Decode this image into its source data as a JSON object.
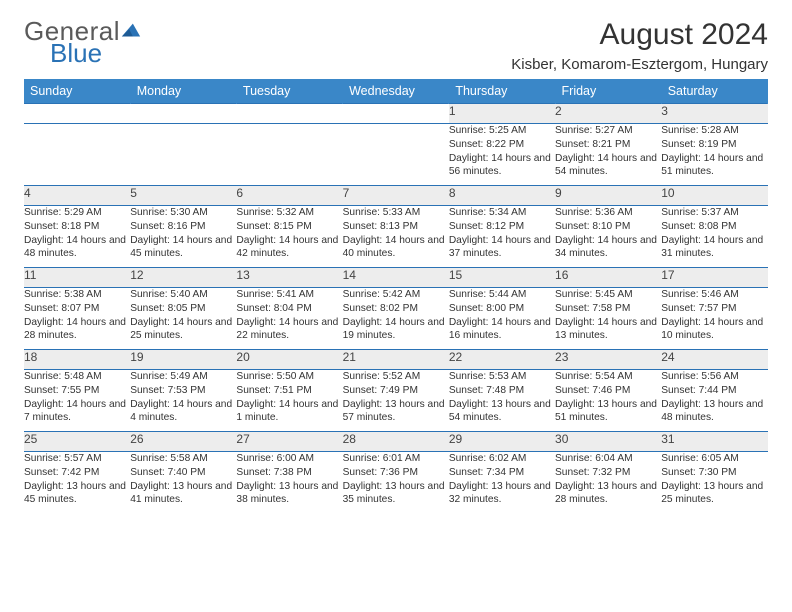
{
  "brand": {
    "line1": "General",
    "line2": "Blue",
    "accent": "#2a72b5",
    "text_color": "#5a5a5a"
  },
  "title": "August 2024",
  "location": "Kisber, Komarom-Esztergom, Hungary",
  "colors": {
    "header_bg": "#3a87c8",
    "header_text": "#ffffff",
    "daynum_bg": "#ededed",
    "cell_border": "#2a72b5",
    "page_bg": "#ffffff",
    "body_text": "#333333"
  },
  "fonts": {
    "title_size": 30,
    "location_size": 15,
    "weekday_size": 12.5,
    "daynum_size": 12,
    "cell_size": 10.2
  },
  "weekdays": [
    "Sunday",
    "Monday",
    "Tuesday",
    "Wednesday",
    "Thursday",
    "Friday",
    "Saturday"
  ],
  "weeks": [
    [
      {
        "n": "",
        "sr": "",
        "ss": "",
        "dl": ""
      },
      {
        "n": "",
        "sr": "",
        "ss": "",
        "dl": ""
      },
      {
        "n": "",
        "sr": "",
        "ss": "",
        "dl": ""
      },
      {
        "n": "",
        "sr": "",
        "ss": "",
        "dl": ""
      },
      {
        "n": "1",
        "sr": "Sunrise: 5:25 AM",
        "ss": "Sunset: 8:22 PM",
        "dl": "Daylight: 14 hours and 56 minutes."
      },
      {
        "n": "2",
        "sr": "Sunrise: 5:27 AM",
        "ss": "Sunset: 8:21 PM",
        "dl": "Daylight: 14 hours and 54 minutes."
      },
      {
        "n": "3",
        "sr": "Sunrise: 5:28 AM",
        "ss": "Sunset: 8:19 PM",
        "dl": "Daylight: 14 hours and 51 minutes."
      }
    ],
    [
      {
        "n": "4",
        "sr": "Sunrise: 5:29 AM",
        "ss": "Sunset: 8:18 PM",
        "dl": "Daylight: 14 hours and 48 minutes."
      },
      {
        "n": "5",
        "sr": "Sunrise: 5:30 AM",
        "ss": "Sunset: 8:16 PM",
        "dl": "Daylight: 14 hours and 45 minutes."
      },
      {
        "n": "6",
        "sr": "Sunrise: 5:32 AM",
        "ss": "Sunset: 8:15 PM",
        "dl": "Daylight: 14 hours and 42 minutes."
      },
      {
        "n": "7",
        "sr": "Sunrise: 5:33 AM",
        "ss": "Sunset: 8:13 PM",
        "dl": "Daylight: 14 hours and 40 minutes."
      },
      {
        "n": "8",
        "sr": "Sunrise: 5:34 AM",
        "ss": "Sunset: 8:12 PM",
        "dl": "Daylight: 14 hours and 37 minutes."
      },
      {
        "n": "9",
        "sr": "Sunrise: 5:36 AM",
        "ss": "Sunset: 8:10 PM",
        "dl": "Daylight: 14 hours and 34 minutes."
      },
      {
        "n": "10",
        "sr": "Sunrise: 5:37 AM",
        "ss": "Sunset: 8:08 PM",
        "dl": "Daylight: 14 hours and 31 minutes."
      }
    ],
    [
      {
        "n": "11",
        "sr": "Sunrise: 5:38 AM",
        "ss": "Sunset: 8:07 PM",
        "dl": "Daylight: 14 hours and 28 minutes."
      },
      {
        "n": "12",
        "sr": "Sunrise: 5:40 AM",
        "ss": "Sunset: 8:05 PM",
        "dl": "Daylight: 14 hours and 25 minutes."
      },
      {
        "n": "13",
        "sr": "Sunrise: 5:41 AM",
        "ss": "Sunset: 8:04 PM",
        "dl": "Daylight: 14 hours and 22 minutes."
      },
      {
        "n": "14",
        "sr": "Sunrise: 5:42 AM",
        "ss": "Sunset: 8:02 PM",
        "dl": "Daylight: 14 hours and 19 minutes."
      },
      {
        "n": "15",
        "sr": "Sunrise: 5:44 AM",
        "ss": "Sunset: 8:00 PM",
        "dl": "Daylight: 14 hours and 16 minutes."
      },
      {
        "n": "16",
        "sr": "Sunrise: 5:45 AM",
        "ss": "Sunset: 7:58 PM",
        "dl": "Daylight: 14 hours and 13 minutes."
      },
      {
        "n": "17",
        "sr": "Sunrise: 5:46 AM",
        "ss": "Sunset: 7:57 PM",
        "dl": "Daylight: 14 hours and 10 minutes."
      }
    ],
    [
      {
        "n": "18",
        "sr": "Sunrise: 5:48 AM",
        "ss": "Sunset: 7:55 PM",
        "dl": "Daylight: 14 hours and 7 minutes."
      },
      {
        "n": "19",
        "sr": "Sunrise: 5:49 AM",
        "ss": "Sunset: 7:53 PM",
        "dl": "Daylight: 14 hours and 4 minutes."
      },
      {
        "n": "20",
        "sr": "Sunrise: 5:50 AM",
        "ss": "Sunset: 7:51 PM",
        "dl": "Daylight: 14 hours and 1 minute."
      },
      {
        "n": "21",
        "sr": "Sunrise: 5:52 AM",
        "ss": "Sunset: 7:49 PM",
        "dl": "Daylight: 13 hours and 57 minutes."
      },
      {
        "n": "22",
        "sr": "Sunrise: 5:53 AM",
        "ss": "Sunset: 7:48 PM",
        "dl": "Daylight: 13 hours and 54 minutes."
      },
      {
        "n": "23",
        "sr": "Sunrise: 5:54 AM",
        "ss": "Sunset: 7:46 PM",
        "dl": "Daylight: 13 hours and 51 minutes."
      },
      {
        "n": "24",
        "sr": "Sunrise: 5:56 AM",
        "ss": "Sunset: 7:44 PM",
        "dl": "Daylight: 13 hours and 48 minutes."
      }
    ],
    [
      {
        "n": "25",
        "sr": "Sunrise: 5:57 AM",
        "ss": "Sunset: 7:42 PM",
        "dl": "Daylight: 13 hours and 45 minutes."
      },
      {
        "n": "26",
        "sr": "Sunrise: 5:58 AM",
        "ss": "Sunset: 7:40 PM",
        "dl": "Daylight: 13 hours and 41 minutes."
      },
      {
        "n": "27",
        "sr": "Sunrise: 6:00 AM",
        "ss": "Sunset: 7:38 PM",
        "dl": "Daylight: 13 hours and 38 minutes."
      },
      {
        "n": "28",
        "sr": "Sunrise: 6:01 AM",
        "ss": "Sunset: 7:36 PM",
        "dl": "Daylight: 13 hours and 35 minutes."
      },
      {
        "n": "29",
        "sr": "Sunrise: 6:02 AM",
        "ss": "Sunset: 7:34 PM",
        "dl": "Daylight: 13 hours and 32 minutes."
      },
      {
        "n": "30",
        "sr": "Sunrise: 6:04 AM",
        "ss": "Sunset: 7:32 PM",
        "dl": "Daylight: 13 hours and 28 minutes."
      },
      {
        "n": "31",
        "sr": "Sunrise: 6:05 AM",
        "ss": "Sunset: 7:30 PM",
        "dl": "Daylight: 13 hours and 25 minutes."
      }
    ]
  ]
}
